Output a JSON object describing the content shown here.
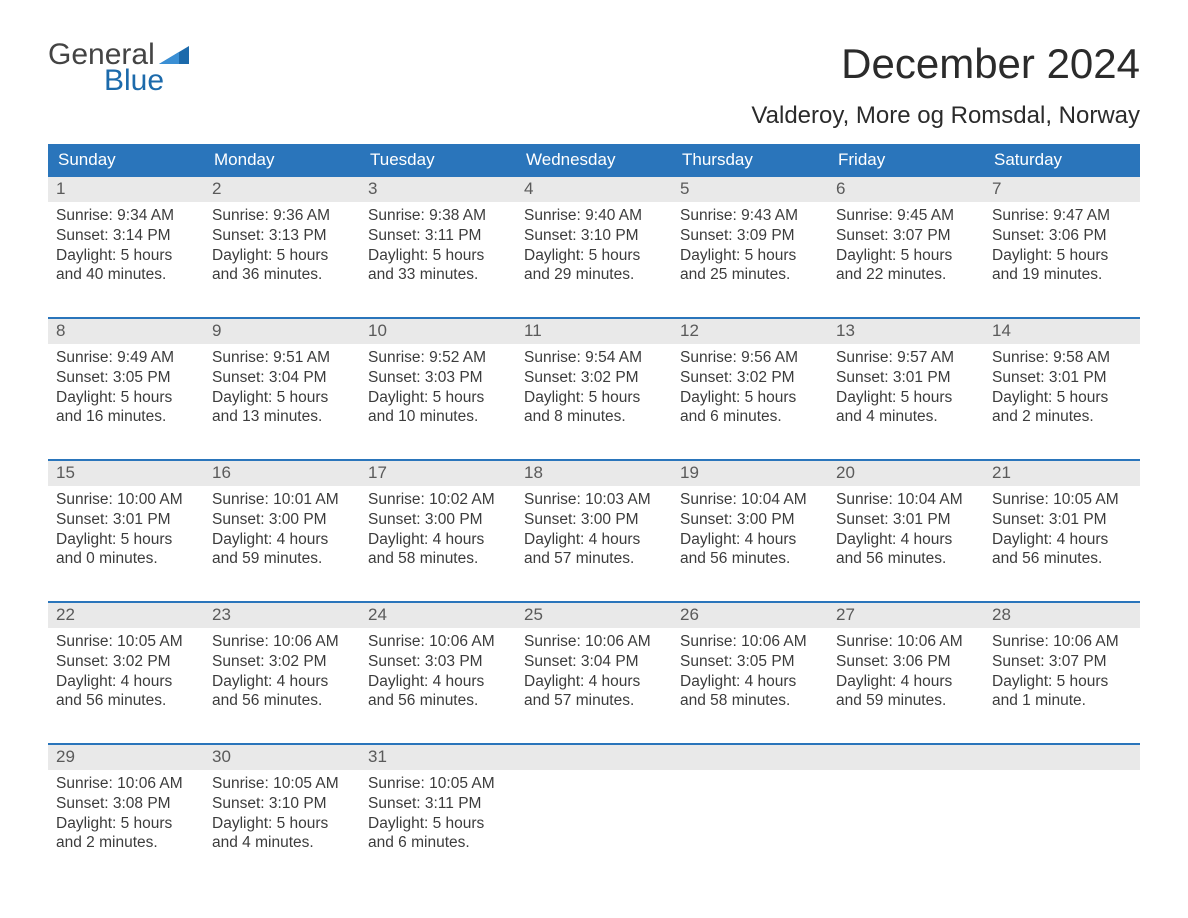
{
  "logo": {
    "line1": "General",
    "line2": "Blue"
  },
  "title": "December 2024",
  "location": "Valderoy, More og Romsdal, Norway",
  "colors": {
    "header_bg": "#2a75bb",
    "header_text": "#ffffff",
    "daynum_bg": "#e9e9e9",
    "daynum_text": "#5a5a5a",
    "body_text": "#3c3c3c",
    "week_border": "#2a75bb",
    "page_bg": "#ffffff",
    "logo_blue": "#1c6aab",
    "logo_gray": "#444444"
  },
  "typography": {
    "title_fontsize": 42,
    "location_fontsize": 24,
    "header_fontsize": 17,
    "daynum_fontsize": 17,
    "body_fontsize": 15.5,
    "font_family": "Arial"
  },
  "day_names": [
    "Sunday",
    "Monday",
    "Tuesday",
    "Wednesday",
    "Thursday",
    "Friday",
    "Saturday"
  ],
  "weeks": [
    [
      {
        "n": "1",
        "sunrise": "Sunrise: 9:34 AM",
        "sunset": "Sunset: 3:14 PM",
        "d1": "Daylight: 5 hours",
        "d2": "and 40 minutes."
      },
      {
        "n": "2",
        "sunrise": "Sunrise: 9:36 AM",
        "sunset": "Sunset: 3:13 PM",
        "d1": "Daylight: 5 hours",
        "d2": "and 36 minutes."
      },
      {
        "n": "3",
        "sunrise": "Sunrise: 9:38 AM",
        "sunset": "Sunset: 3:11 PM",
        "d1": "Daylight: 5 hours",
        "d2": "and 33 minutes."
      },
      {
        "n": "4",
        "sunrise": "Sunrise: 9:40 AM",
        "sunset": "Sunset: 3:10 PM",
        "d1": "Daylight: 5 hours",
        "d2": "and 29 minutes."
      },
      {
        "n": "5",
        "sunrise": "Sunrise: 9:43 AM",
        "sunset": "Sunset: 3:09 PM",
        "d1": "Daylight: 5 hours",
        "d2": "and 25 minutes."
      },
      {
        "n": "6",
        "sunrise": "Sunrise: 9:45 AM",
        "sunset": "Sunset: 3:07 PM",
        "d1": "Daylight: 5 hours",
        "d2": "and 22 minutes."
      },
      {
        "n": "7",
        "sunrise": "Sunrise: 9:47 AM",
        "sunset": "Sunset: 3:06 PM",
        "d1": "Daylight: 5 hours",
        "d2": "and 19 minutes."
      }
    ],
    [
      {
        "n": "8",
        "sunrise": "Sunrise: 9:49 AM",
        "sunset": "Sunset: 3:05 PM",
        "d1": "Daylight: 5 hours",
        "d2": "and 16 minutes."
      },
      {
        "n": "9",
        "sunrise": "Sunrise: 9:51 AM",
        "sunset": "Sunset: 3:04 PM",
        "d1": "Daylight: 5 hours",
        "d2": "and 13 minutes."
      },
      {
        "n": "10",
        "sunrise": "Sunrise: 9:52 AM",
        "sunset": "Sunset: 3:03 PM",
        "d1": "Daylight: 5 hours",
        "d2": "and 10 minutes."
      },
      {
        "n": "11",
        "sunrise": "Sunrise: 9:54 AM",
        "sunset": "Sunset: 3:02 PM",
        "d1": "Daylight: 5 hours",
        "d2": "and 8 minutes."
      },
      {
        "n": "12",
        "sunrise": "Sunrise: 9:56 AM",
        "sunset": "Sunset: 3:02 PM",
        "d1": "Daylight: 5 hours",
        "d2": "and 6 minutes."
      },
      {
        "n": "13",
        "sunrise": "Sunrise: 9:57 AM",
        "sunset": "Sunset: 3:01 PM",
        "d1": "Daylight: 5 hours",
        "d2": "and 4 minutes."
      },
      {
        "n": "14",
        "sunrise": "Sunrise: 9:58 AM",
        "sunset": "Sunset: 3:01 PM",
        "d1": "Daylight: 5 hours",
        "d2": "and 2 minutes."
      }
    ],
    [
      {
        "n": "15",
        "sunrise": "Sunrise: 10:00 AM",
        "sunset": "Sunset: 3:01 PM",
        "d1": "Daylight: 5 hours",
        "d2": "and 0 minutes."
      },
      {
        "n": "16",
        "sunrise": "Sunrise: 10:01 AM",
        "sunset": "Sunset: 3:00 PM",
        "d1": "Daylight: 4 hours",
        "d2": "and 59 minutes."
      },
      {
        "n": "17",
        "sunrise": "Sunrise: 10:02 AM",
        "sunset": "Sunset: 3:00 PM",
        "d1": "Daylight: 4 hours",
        "d2": "and 58 minutes."
      },
      {
        "n": "18",
        "sunrise": "Sunrise: 10:03 AM",
        "sunset": "Sunset: 3:00 PM",
        "d1": "Daylight: 4 hours",
        "d2": "and 57 minutes."
      },
      {
        "n": "19",
        "sunrise": "Sunrise: 10:04 AM",
        "sunset": "Sunset: 3:00 PM",
        "d1": "Daylight: 4 hours",
        "d2": "and 56 minutes."
      },
      {
        "n": "20",
        "sunrise": "Sunrise: 10:04 AM",
        "sunset": "Sunset: 3:01 PM",
        "d1": "Daylight: 4 hours",
        "d2": "and 56 minutes."
      },
      {
        "n": "21",
        "sunrise": "Sunrise: 10:05 AM",
        "sunset": "Sunset: 3:01 PM",
        "d1": "Daylight: 4 hours",
        "d2": "and 56 minutes."
      }
    ],
    [
      {
        "n": "22",
        "sunrise": "Sunrise: 10:05 AM",
        "sunset": "Sunset: 3:02 PM",
        "d1": "Daylight: 4 hours",
        "d2": "and 56 minutes."
      },
      {
        "n": "23",
        "sunrise": "Sunrise: 10:06 AM",
        "sunset": "Sunset: 3:02 PM",
        "d1": "Daylight: 4 hours",
        "d2": "and 56 minutes."
      },
      {
        "n": "24",
        "sunrise": "Sunrise: 10:06 AM",
        "sunset": "Sunset: 3:03 PM",
        "d1": "Daylight: 4 hours",
        "d2": "and 56 minutes."
      },
      {
        "n": "25",
        "sunrise": "Sunrise: 10:06 AM",
        "sunset": "Sunset: 3:04 PM",
        "d1": "Daylight: 4 hours",
        "d2": "and 57 minutes."
      },
      {
        "n": "26",
        "sunrise": "Sunrise: 10:06 AM",
        "sunset": "Sunset: 3:05 PM",
        "d1": "Daylight: 4 hours",
        "d2": "and 58 minutes."
      },
      {
        "n": "27",
        "sunrise": "Sunrise: 10:06 AM",
        "sunset": "Sunset: 3:06 PM",
        "d1": "Daylight: 4 hours",
        "d2": "and 59 minutes."
      },
      {
        "n": "28",
        "sunrise": "Sunrise: 10:06 AM",
        "sunset": "Sunset: 3:07 PM",
        "d1": "Daylight: 5 hours",
        "d2": "and 1 minute."
      }
    ],
    [
      {
        "n": "29",
        "sunrise": "Sunrise: 10:06 AM",
        "sunset": "Sunset: 3:08 PM",
        "d1": "Daylight: 5 hours",
        "d2": "and 2 minutes."
      },
      {
        "n": "30",
        "sunrise": "Sunrise: 10:05 AM",
        "sunset": "Sunset: 3:10 PM",
        "d1": "Daylight: 5 hours",
        "d2": "and 4 minutes."
      },
      {
        "n": "31",
        "sunrise": "Sunrise: 10:05 AM",
        "sunset": "Sunset: 3:11 PM",
        "d1": "Daylight: 5 hours",
        "d2": "and 6 minutes."
      },
      {
        "empty": true
      },
      {
        "empty": true
      },
      {
        "empty": true
      },
      {
        "empty": true
      }
    ]
  ]
}
